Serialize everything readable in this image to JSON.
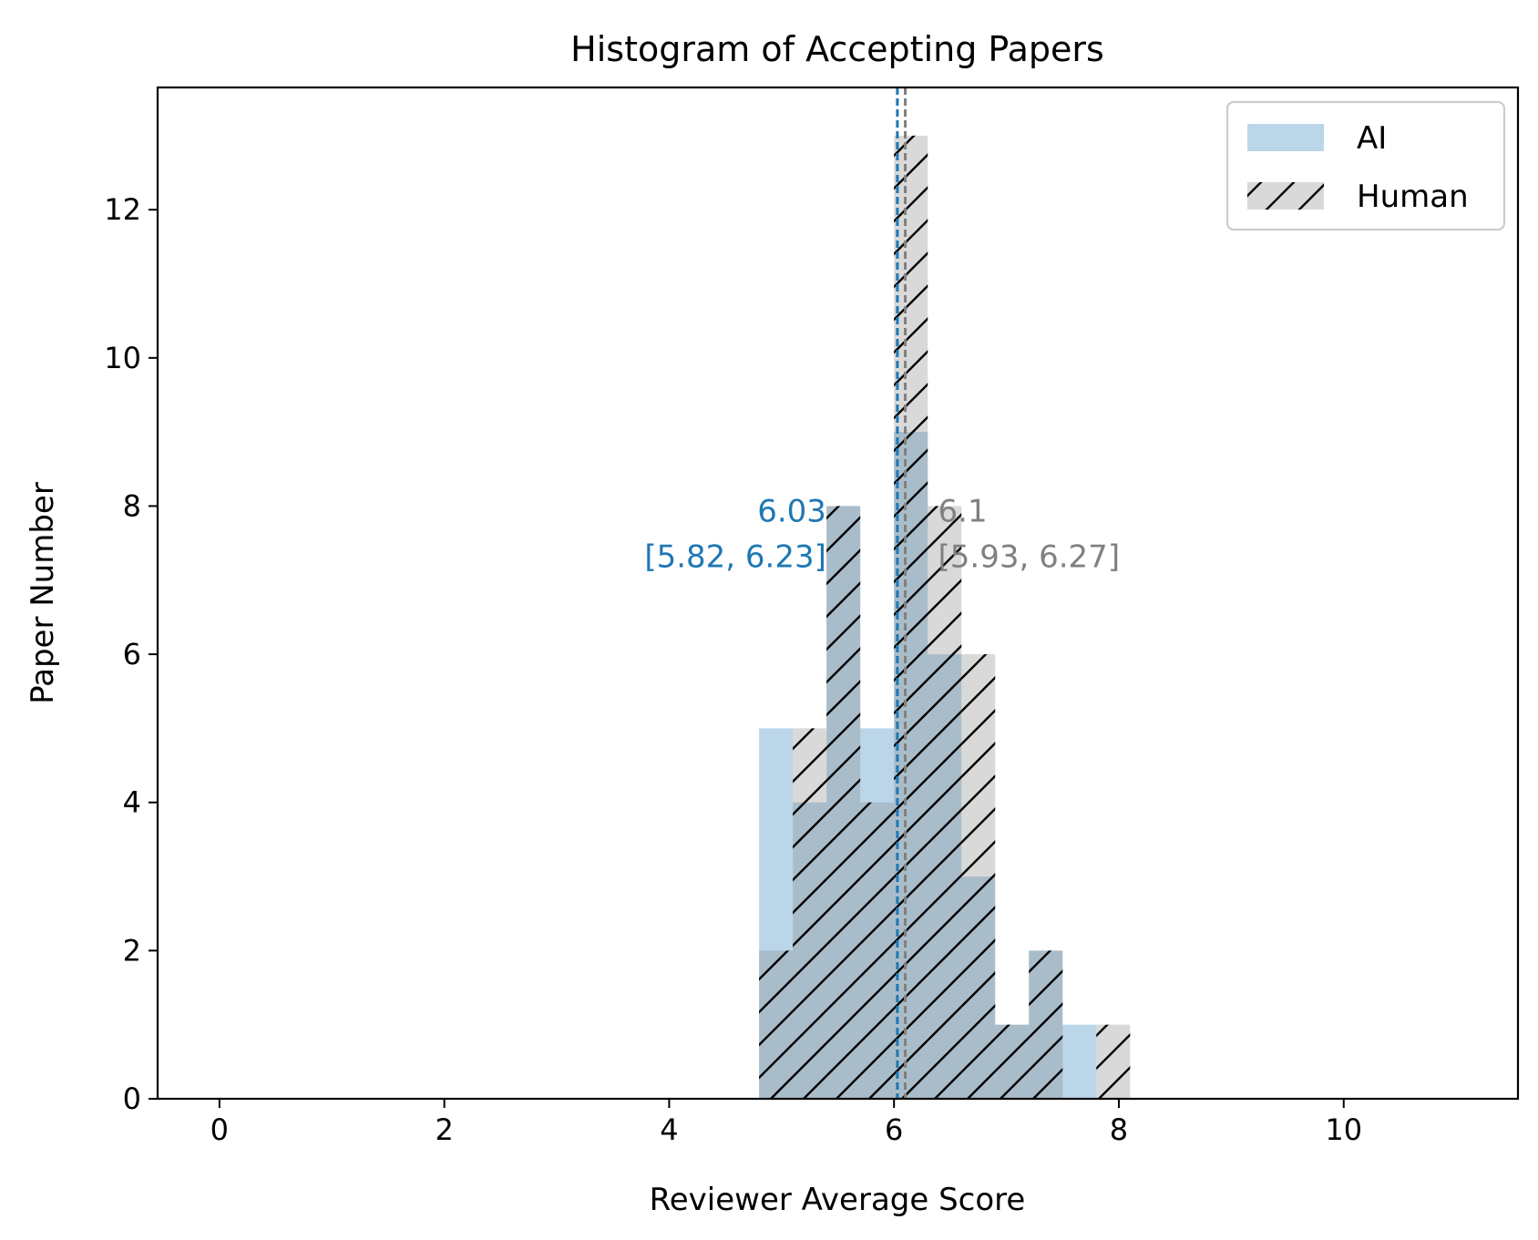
{
  "chart_data": {
    "type": "bar",
    "title": "Histogram of Accepting Papers",
    "xlabel": "Reviewer Average Score",
    "ylabel": "Paper Number",
    "xlim": [
      -0.55,
      11.55
    ],
    "ylim": [
      0,
      13.65
    ],
    "xticks": [
      0,
      2,
      4,
      6,
      8,
      10
    ],
    "yticks": [
      0,
      2,
      4,
      6,
      8,
      10,
      12
    ],
    "bin_edges": [
      4.8,
      5.1,
      5.4,
      5.7,
      6.0,
      6.3,
      6.6,
      6.9,
      7.2,
      7.5,
      7.8,
      8.1
    ],
    "series": [
      {
        "name": "AI",
        "color": "#1f77b4",
        "alpha": 0.3,
        "hatch": "none",
        "values": [
          5,
          4,
          8,
          5,
          9,
          6,
          3,
          1,
          2,
          1,
          0
        ]
      },
      {
        "name": "Human",
        "color": "#808080",
        "alpha": 0.3,
        "hatch": "diagonal",
        "values": [
          2,
          5,
          8,
          4,
          13,
          8,
          6,
          1,
          2,
          0,
          1
        ]
      }
    ],
    "mean_lines": [
      {
        "series": "AI",
        "value": 6.03,
        "color": "#1f77b4",
        "style": "dashed"
      },
      {
        "series": "Human",
        "value": 6.1,
        "color": "#808080",
        "style": "dashed"
      }
    ],
    "annotations": [
      {
        "series": "AI",
        "mean_text": "6.03",
        "ci_text": "[5.82, 6.23]",
        "color": "#1f77b4",
        "align": "right"
      },
      {
        "series": "Human",
        "mean_text": "6.1",
        "ci_text": "[5.93, 6.27]",
        "color": "#808080",
        "align": "left"
      }
    ],
    "legend": {
      "placement": "top-right",
      "entries": [
        "AI",
        "Human"
      ]
    },
    "grid": false
  }
}
